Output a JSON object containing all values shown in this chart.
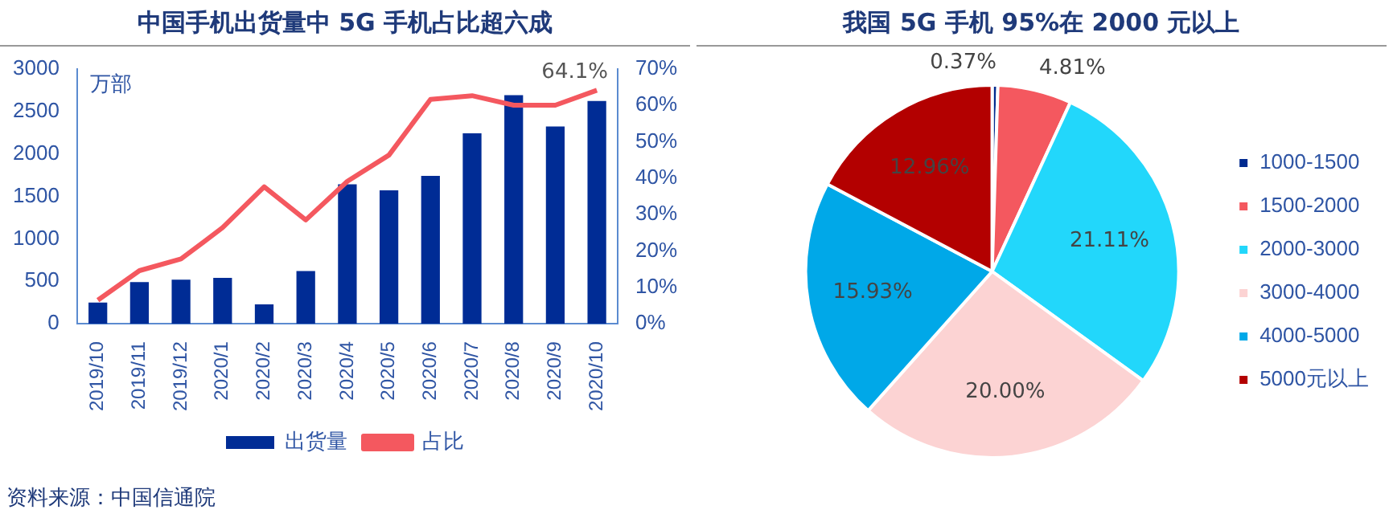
{
  "chart_data": [
    {
      "type": "bar",
      "title": "中国手机出货量中 5G 手机占比超六成",
      "ylabel": "万部",
      "categories": [
        "2019/10",
        "2019/11",
        "2019/12",
        "2020/1",
        "2020/2",
        "2020/3",
        "2020/4",
        "2020/5",
        "2020/6",
        "2020/7",
        "2020/8",
        "2020/9",
        "2020/10"
      ],
      "series": [
        {
          "type": "bar",
          "name": "出货量",
          "color": "#002c95",
          "values": [
            250,
            490,
            520,
            540,
            230,
            620,
            1640,
            1570,
            1740,
            2240,
            2690,
            2320,
            2620
          ]
        },
        {
          "type": "line",
          "name": "占比",
          "color": "#f4585f",
          "axis": "y2",
          "values": [
            6.5,
            14.6,
            17.8,
            26.4,
            37.6,
            28.5,
            39.1,
            46.3,
            61.6,
            62.6,
            60.0,
            60.0,
            64.1
          ]
        }
      ],
      "ylim": [
        0,
        3000
      ],
      "yticks": [
        0,
        500,
        1000,
        1500,
        2000,
        2500,
        3000
      ],
      "y2lim": [
        0,
        70
      ],
      "y2ticks": [
        {
          "value": 0,
          "label": "0%"
        },
        {
          "value": 10,
          "label": "10%"
        },
        {
          "value": 20,
          "label": "20%"
        },
        {
          "value": 30,
          "label": "30%"
        },
        {
          "value": 40,
          "label": "40%"
        },
        {
          "value": 50,
          "label": "50%"
        },
        {
          "value": 60,
          "label": "60%"
        },
        {
          "value": 70,
          "label": "70%"
        }
      ],
      "annotations": [
        "64.1%",
        "资料来源：中国信通院"
      ],
      "legend": "bottom",
      "grid": false,
      "marker": "none"
    },
    {
      "type": "pie",
      "title": "我国 5G 手机 95%在 2000 元以上",
      "categories": [
        "1000-1500",
        "1500-2000",
        "2000-3000",
        "3000-4000",
        "4000-5000",
        "5000元以上"
      ],
      "values": [
        0.37,
        4.81,
        21.11,
        20.0,
        15.93,
        12.96
      ],
      "value_labels": [
        "0.37%",
        "4.81%",
        "21.11%",
        "20.00%",
        "15.93%",
        "12.96%"
      ],
      "colors": [
        "#002a8f",
        "#f4585f",
        "#22d7fb",
        "#fcd3d3",
        "#00a8e8",
        "#b30000"
      ],
      "legend": "right"
    }
  ]
}
